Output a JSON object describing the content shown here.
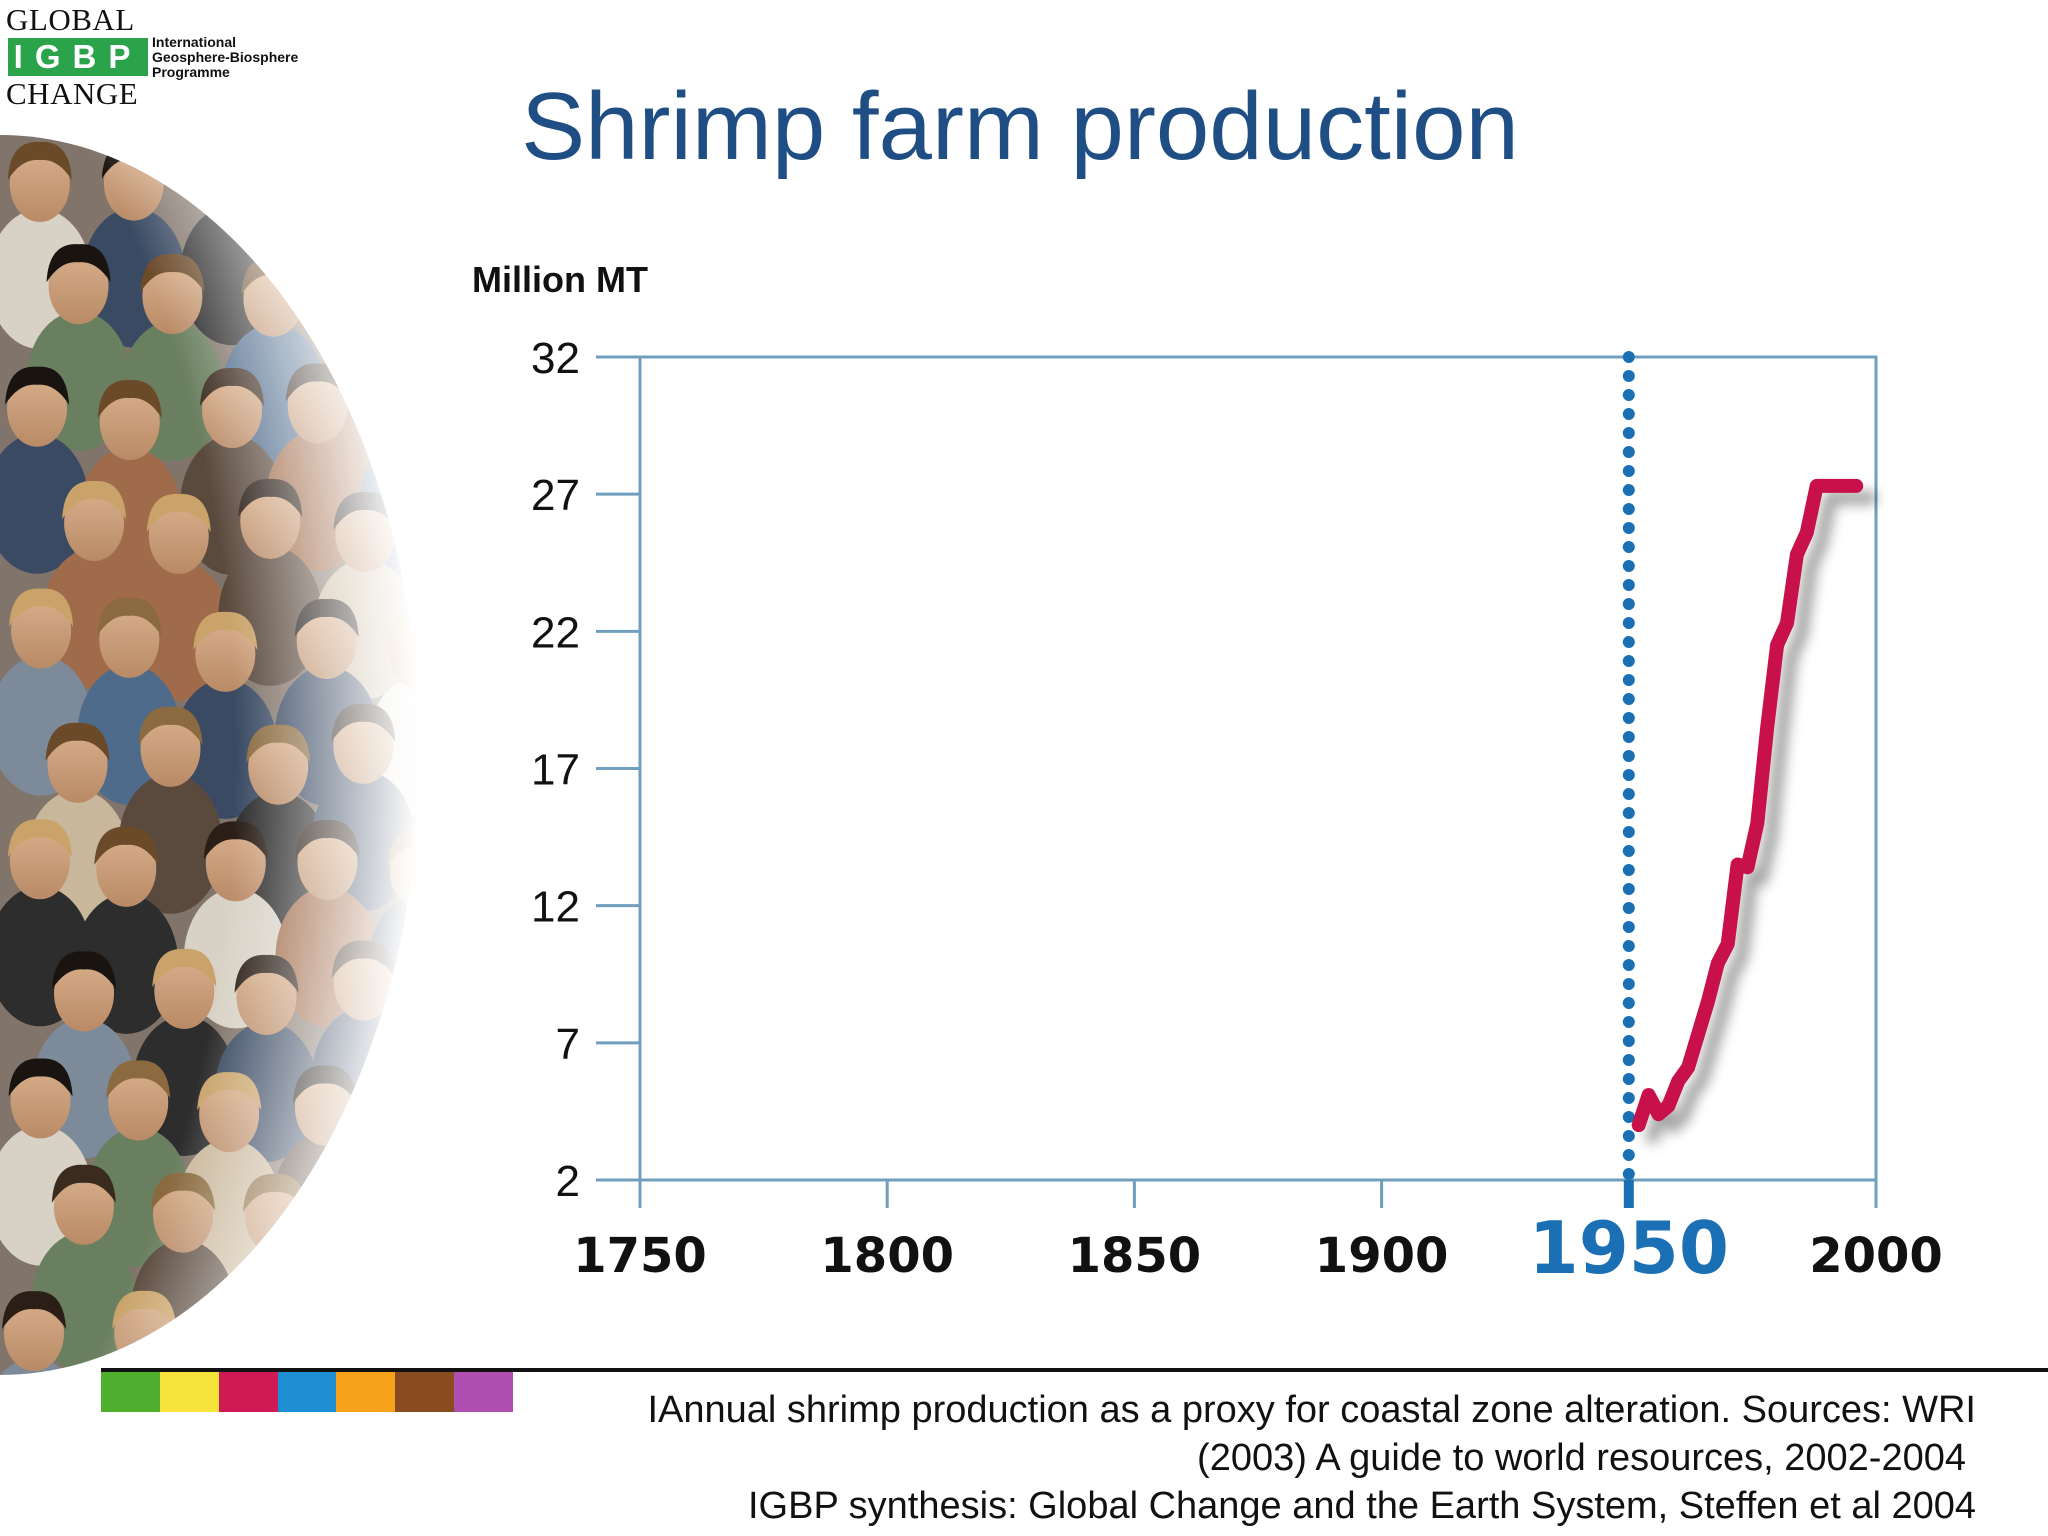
{
  "logo": {
    "line1": "GLOBAL",
    "mark": "IGBP",
    "line3": "CHANGE",
    "sub": [
      "International",
      "Geosphere-Biosphere",
      "Programme"
    ],
    "color": "#2aa34a"
  },
  "slide": {
    "title": "Shrimp farm production",
    "title_color": "#1f4e84"
  },
  "chart_data": {
    "type": "line",
    "title": "",
    "xlabel": "",
    "ylabel": "Million MT",
    "xlim": [
      1750,
      2000
    ],
    "ylim": [
      2,
      32
    ],
    "x_ticks": [
      1750,
      1800,
      1850,
      1900,
      1950,
      2000
    ],
    "x_tick_labels": [
      "1750",
      "1800",
      "1850",
      "1900",
      "1950",
      "2000"
    ],
    "y_ticks": [
      2,
      7,
      12,
      17,
      22,
      27,
      32
    ],
    "y_tick_labels": [
      "2",
      "7",
      "12",
      "17",
      "22",
      "27",
      "32"
    ],
    "highlight_x": 1950,
    "highlight_color": "#1a6fb5",
    "axis_color": "#6f9fbd",
    "series": [
      {
        "color": "#c8104a",
        "x": [
          1952,
          1954,
          1956,
          1958,
          1960,
          1962,
          1964,
          1966,
          1968,
          1970,
          1972,
          1974,
          1976,
          1978,
          1980,
          1982,
          1984,
          1986,
          1988,
          1990,
          1992,
          1994,
          1996
        ],
        "y": [
          4.0,
          5.1,
          4.4,
          4.7,
          5.6,
          6.1,
          7.3,
          8.5,
          9.9,
          10.6,
          13.5,
          13.4,
          15.0,
          18.5,
          21.5,
          22.3,
          24.8,
          25.6,
          27.3,
          27.3,
          27.3,
          27.3,
          27.3
        ]
      }
    ]
  },
  "stripes": [
    "#4fae2d",
    "#f7e43a",
    "#cf1a55",
    "#1e8fd2",
    "#f7a21b",
    "#8a4b1e",
    "#b04fb1"
  ],
  "caption": {
    "line1": "IAnnual shrimp production as a proxy for coastal zone alteration. Sources: WRI",
    "line2": "(2003) A guide to world resources, 2002-2004",
    "line3": "IGBP synthesis: Global Change and the Earth System, Steffen et al 2004"
  }
}
